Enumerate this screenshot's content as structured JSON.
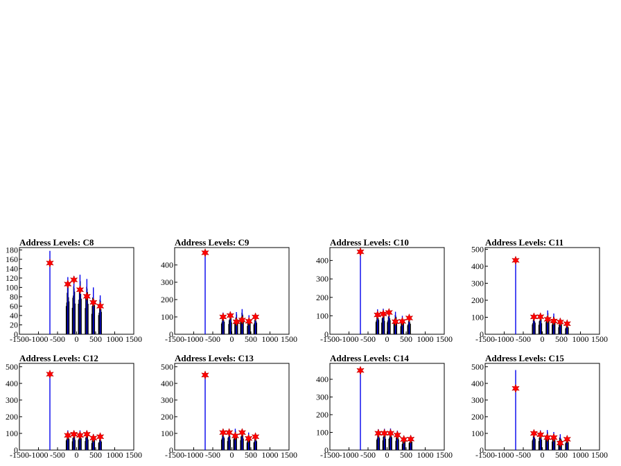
{
  "chart_data": [
    {
      "type": "histogram",
      "title": "Address Levels: C8",
      "xlim": [
        -1500,
        1500
      ],
      "ylim": [
        0,
        185
      ],
      "y_ticks": [
        0,
        20,
        40,
        60,
        80,
        100,
        120,
        140,
        160,
        180
      ],
      "x_ticks": [
        -1500,
        -1000,
        -500,
        0,
        500,
        1000,
        1500
      ],
      "peaks": [
        {
          "x": -700,
          "y": 152
        },
        {
          "x": -230,
          "y": 107
        },
        {
          "x": -70,
          "y": 116
        },
        {
          "x": 90,
          "y": 95
        },
        {
          "x": 270,
          "y": 81
        },
        {
          "x": 440,
          "y": 68
        },
        {
          "x": 620,
          "y": 60
        }
      ],
      "bar_max": [
        {
          "x": -700,
          "y": 178
        },
        {
          "x": -230,
          "y": 122
        },
        {
          "x": -70,
          "y": 124
        },
        {
          "x": 90,
          "y": 127
        },
        {
          "x": 270,
          "y": 118
        },
        {
          "x": 440,
          "y": 100
        },
        {
          "x": 620,
          "y": 83
        }
      ]
    },
    {
      "type": "histogram",
      "title": "Address Levels: C9",
      "xlim": [
        -1500,
        1500
      ],
      "ylim": [
        0,
        500
      ],
      "y_ticks": [
        0,
        100,
        200,
        300,
        400
      ],
      "x_ticks": [
        -1500,
        -1000,
        -500,
        0,
        500,
        1000,
        1500
      ],
      "peaks": [
        {
          "x": -700,
          "y": 470
        },
        {
          "x": -230,
          "y": 100
        },
        {
          "x": -40,
          "y": 108
        },
        {
          "x": 120,
          "y": 72
        },
        {
          "x": 270,
          "y": 82
        },
        {
          "x": 450,
          "y": 75
        },
        {
          "x": 620,
          "y": 100
        }
      ],
      "bar_max": [
        {
          "x": -700,
          "y": 480
        },
        {
          "x": -230,
          "y": 125
        },
        {
          "x": -40,
          "y": 130
        },
        {
          "x": 120,
          "y": 128
        },
        {
          "x": 270,
          "y": 145
        },
        {
          "x": 450,
          "y": 110
        },
        {
          "x": 620,
          "y": 115
        }
      ]
    },
    {
      "type": "histogram",
      "title": "Address Levels: C10",
      "xlim": [
        -1500,
        1500
      ],
      "ylim": [
        0,
        470
      ],
      "y_ticks": [
        0,
        100,
        200,
        300,
        400
      ],
      "x_ticks": [
        -1500,
        -1000,
        -500,
        0,
        500,
        1000,
        1500
      ],
      "peaks": [
        {
          "x": -700,
          "y": 447
        },
        {
          "x": -250,
          "y": 105
        },
        {
          "x": -100,
          "y": 110
        },
        {
          "x": 50,
          "y": 118
        },
        {
          "x": 220,
          "y": 68
        },
        {
          "x": 400,
          "y": 70
        },
        {
          "x": 580,
          "y": 88
        }
      ],
      "bar_max": [
        {
          "x": -700,
          "y": 455
        },
        {
          "x": -250,
          "y": 135
        },
        {
          "x": -100,
          "y": 138
        },
        {
          "x": 50,
          "y": 128
        },
        {
          "x": 220,
          "y": 122
        },
        {
          "x": 400,
          "y": 100
        },
        {
          "x": 580,
          "y": 98
        }
      ]
    },
    {
      "type": "histogram",
      "title": "Address Levels: C11",
      "xlim": [
        -1500,
        1500
      ],
      "ylim": [
        0,
        510
      ],
      "y_ticks": [
        0,
        100,
        200,
        300,
        400,
        500
      ],
      "x_ticks": [
        -1500,
        -1000,
        -500,
        0,
        500,
        1000,
        1500
      ],
      "peaks": [
        {
          "x": -700,
          "y": 435
        },
        {
          "x": -220,
          "y": 102
        },
        {
          "x": -50,
          "y": 103
        },
        {
          "x": 140,
          "y": 88
        },
        {
          "x": 300,
          "y": 78
        },
        {
          "x": 470,
          "y": 72
        },
        {
          "x": 650,
          "y": 62
        }
      ],
      "bar_max": [
        {
          "x": -700,
          "y": 445
        },
        {
          "x": -220,
          "y": 118
        },
        {
          "x": -50,
          "y": 122
        },
        {
          "x": 140,
          "y": 140
        },
        {
          "x": 300,
          "y": 122
        },
        {
          "x": 470,
          "y": 95
        },
        {
          "x": 650,
          "y": 70
        }
      ]
    },
    {
      "type": "histogram",
      "title": "Address Levels: C12",
      "xlim": [
        -1500,
        1500
      ],
      "ylim": [
        0,
        520
      ],
      "y_ticks": [
        0,
        100,
        200,
        300,
        400,
        500
      ],
      "x_ticks": [
        -1500,
        -1000,
        -500,
        0,
        500,
        1000,
        1500
      ],
      "peaks": [
        {
          "x": -700,
          "y": 455
        },
        {
          "x": -230,
          "y": 88
        },
        {
          "x": -70,
          "y": 95
        },
        {
          "x": 90,
          "y": 88
        },
        {
          "x": 270,
          "y": 95
        },
        {
          "x": 440,
          "y": 72
        },
        {
          "x": 620,
          "y": 80
        }
      ],
      "bar_max": [
        {
          "x": -700,
          "y": 462
        },
        {
          "x": -230,
          "y": 118
        },
        {
          "x": -70,
          "y": 115
        },
        {
          "x": 90,
          "y": 118
        },
        {
          "x": 270,
          "y": 115
        },
        {
          "x": 440,
          "y": 95
        },
        {
          "x": 620,
          "y": 88
        }
      ]
    },
    {
      "type": "histogram",
      "title": "Address Levels: C13",
      "xlim": [
        -1500,
        1500
      ],
      "ylim": [
        0,
        520
      ],
      "y_ticks": [
        0,
        100,
        200,
        300,
        400,
        500
      ],
      "x_ticks": [
        -1500,
        -1000,
        -500,
        0,
        500,
        1000,
        1500
      ],
      "peaks": [
        {
          "x": -700,
          "y": 450
        },
        {
          "x": -230,
          "y": 105
        },
        {
          "x": -70,
          "y": 105
        },
        {
          "x": 90,
          "y": 85
        },
        {
          "x": 270,
          "y": 105
        },
        {
          "x": 440,
          "y": 70
        },
        {
          "x": 620,
          "y": 80
        }
      ],
      "bar_max": [
        {
          "x": -700,
          "y": 458
        },
        {
          "x": -230,
          "y": 125
        },
        {
          "x": -70,
          "y": 118
        },
        {
          "x": 90,
          "y": 128
        },
        {
          "x": 270,
          "y": 125
        },
        {
          "x": 440,
          "y": 105
        },
        {
          "x": 620,
          "y": 92
        }
      ]
    },
    {
      "type": "histogram",
      "title": "Address Levels: C14",
      "xlim": [
        -1500,
        1500
      ],
      "ylim": [
        0,
        490
      ],
      "y_ticks": [
        0,
        100,
        200,
        300,
        400
      ],
      "x_ticks": [
        -1500,
        -1000,
        -500,
        0,
        500,
        1000,
        1500
      ],
      "peaks": [
        {
          "x": -700,
          "y": 450
        },
        {
          "x": -230,
          "y": 95
        },
        {
          "x": -70,
          "y": 95
        },
        {
          "x": 90,
          "y": 95
        },
        {
          "x": 270,
          "y": 85
        },
        {
          "x": 440,
          "y": 60
        },
        {
          "x": 620,
          "y": 62
        }
      ],
      "bar_max": [
        {
          "x": -700,
          "y": 458
        },
        {
          "x": -230,
          "y": 118
        },
        {
          "x": -70,
          "y": 120
        },
        {
          "x": 90,
          "y": 122
        },
        {
          "x": 270,
          "y": 110
        },
        {
          "x": 440,
          "y": 80
        },
        {
          "x": 620,
          "y": 82
        }
      ]
    },
    {
      "type": "histogram",
      "title": "Address Levels: C15",
      "xlim": [
        -1500,
        1500
      ],
      "ylim": [
        0,
        520
      ],
      "y_ticks": [
        0,
        100,
        200,
        300,
        400,
        500
      ],
      "x_ticks": [
        -1500,
        -1000,
        -500,
        0,
        500,
        1000,
        1500
      ],
      "peaks": [
        {
          "x": -700,
          "y": 370
        },
        {
          "x": -220,
          "y": 100
        },
        {
          "x": -50,
          "y": 92
        },
        {
          "x": 130,
          "y": 75
        },
        {
          "x": 300,
          "y": 75
        },
        {
          "x": 470,
          "y": 42
        },
        {
          "x": 650,
          "y": 65
        }
      ],
      "bar_max": [
        {
          "x": -700,
          "y": 480
        },
        {
          "x": -220,
          "y": 115
        },
        {
          "x": -50,
          "y": 118
        },
        {
          "x": 130,
          "y": 120
        },
        {
          "x": 300,
          "y": 108
        },
        {
          "x": 470,
          "y": 95
        },
        {
          "x": 650,
          "y": 82
        }
      ]
    }
  ]
}
